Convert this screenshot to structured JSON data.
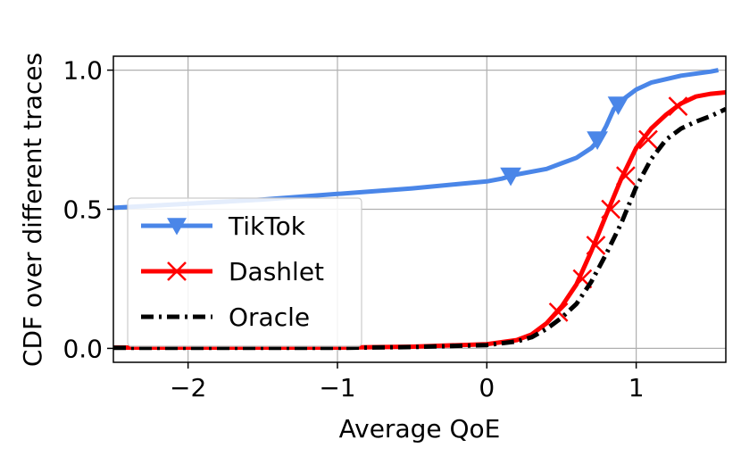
{
  "chart_data": {
    "type": "line",
    "title": "",
    "xlabel": "Average QoE",
    "ylabel": "CDF over different traces",
    "xlim": [
      -2.5,
      1.6
    ],
    "ylim": [
      -0.05,
      1.05
    ],
    "x_ticks": [
      -2,
      -1,
      0,
      1
    ],
    "x_tick_labels": [
      "−2",
      "−1",
      "0",
      "1"
    ],
    "y_ticks": [
      0.0,
      0.5,
      1.0
    ],
    "y_tick_labels": [
      "0.0",
      "0.5",
      "1.0"
    ],
    "grid": true,
    "legend_position": "center-left",
    "series": [
      {
        "name": "TikTok",
        "color": "#4a86e8",
        "line_style": "solid",
        "marker": "triangle-down",
        "points": [
          [
            -2.5,
            0.505
          ],
          [
            -2.0,
            0.52
          ],
          [
            -1.5,
            0.535
          ],
          [
            -1.0,
            0.555
          ],
          [
            -0.5,
            0.575
          ],
          [
            -0.2,
            0.59
          ],
          [
            0.0,
            0.6
          ],
          [
            0.1,
            0.61
          ],
          [
            0.2,
            0.625
          ],
          [
            0.4,
            0.645
          ],
          [
            0.5,
            0.665
          ],
          [
            0.6,
            0.685
          ],
          [
            0.7,
            0.72
          ],
          [
            0.75,
            0.75
          ],
          [
            0.8,
            0.8
          ],
          [
            0.85,
            0.86
          ],
          [
            0.9,
            0.89
          ],
          [
            1.0,
            0.93
          ],
          [
            1.1,
            0.955
          ],
          [
            1.3,
            0.98
          ],
          [
            1.5,
            0.995
          ],
          [
            1.55,
            1.0
          ]
        ],
        "marker_points": [
          [
            0.16,
            0.62
          ],
          [
            0.74,
            0.75
          ],
          [
            0.88,
            0.875
          ]
        ]
      },
      {
        "name": "Dashlet",
        "color": "#ff0000",
        "line_style": "solid",
        "marker": "x",
        "points": [
          [
            -2.5,
            0.003
          ],
          [
            -1.0,
            0.003
          ],
          [
            -0.5,
            0.006
          ],
          [
            0.0,
            0.015
          ],
          [
            0.2,
            0.03
          ],
          [
            0.3,
            0.05
          ],
          [
            0.4,
            0.09
          ],
          [
            0.5,
            0.15
          ],
          [
            0.6,
            0.23
          ],
          [
            0.7,
            0.35
          ],
          [
            0.8,
            0.48
          ],
          [
            0.9,
            0.61
          ],
          [
            1.0,
            0.72
          ],
          [
            1.1,
            0.79
          ],
          [
            1.2,
            0.84
          ],
          [
            1.3,
            0.88
          ],
          [
            1.4,
            0.905
          ],
          [
            1.5,
            0.915
          ],
          [
            1.6,
            0.92
          ]
        ],
        "marker_points": [
          [
            0.48,
            0.13
          ],
          [
            0.64,
            0.25
          ],
          [
            0.73,
            0.37
          ],
          [
            0.83,
            0.5
          ],
          [
            0.93,
            0.62
          ],
          [
            1.08,
            0.75
          ],
          [
            1.28,
            0.87
          ]
        ]
      },
      {
        "name": "Oracle",
        "color": "#000000",
        "line_style": "dash-dot",
        "marker": "none",
        "points": [
          [
            -2.5,
            0.002
          ],
          [
            -1.0,
            0.002
          ],
          [
            -0.5,
            0.005
          ],
          [
            0.0,
            0.012
          ],
          [
            0.2,
            0.025
          ],
          [
            0.3,
            0.04
          ],
          [
            0.4,
            0.07
          ],
          [
            0.5,
            0.11
          ],
          [
            0.6,
            0.16
          ],
          [
            0.7,
            0.24
          ],
          [
            0.8,
            0.34
          ],
          [
            0.9,
            0.45
          ],
          [
            1.0,
            0.58
          ],
          [
            1.1,
            0.68
          ],
          [
            1.2,
            0.75
          ],
          [
            1.3,
            0.79
          ],
          [
            1.4,
            0.815
          ],
          [
            1.5,
            0.835
          ],
          [
            1.6,
            0.86
          ]
        ]
      }
    ]
  }
}
